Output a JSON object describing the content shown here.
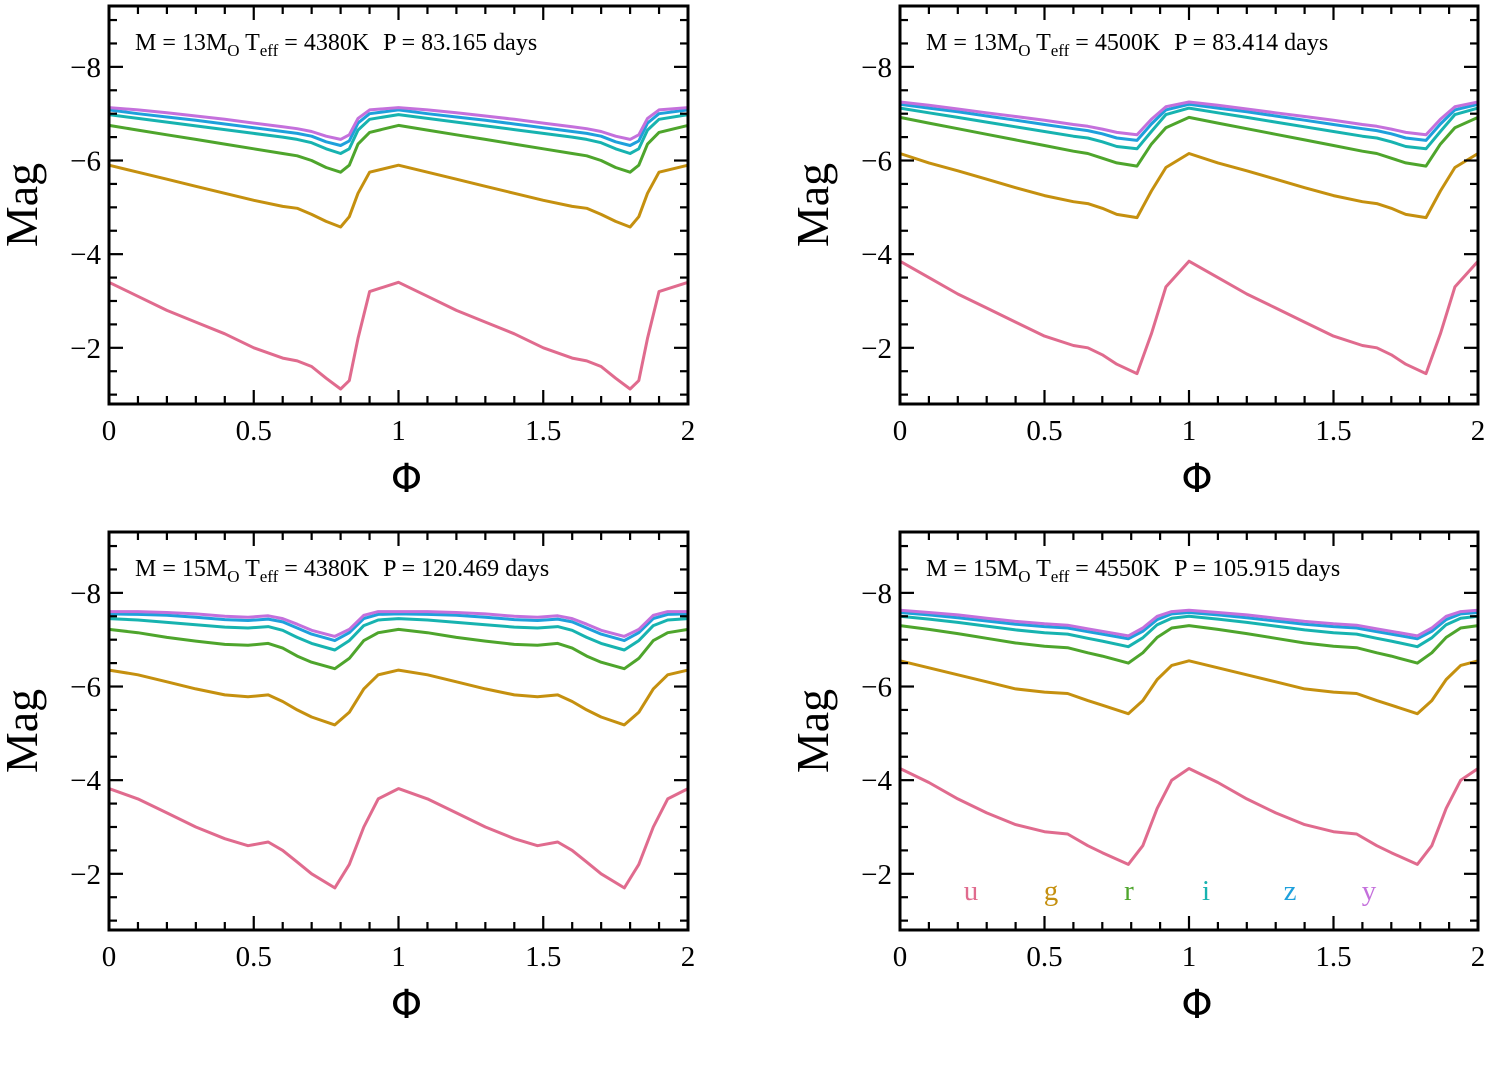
{
  "figure": {
    "legend": {
      "entries": [
        {
          "band": "u",
          "color": "#e06b8e"
        },
        {
          "band": "g",
          "color": "#c5900f"
        },
        {
          "band": "r",
          "color": "#4ea52c"
        },
        {
          "band": "i",
          "color": "#17b3b0"
        },
        {
          "band": "z",
          "color": "#1ea0dc"
        },
        {
          "band": "y",
          "color": "#c470dc"
        }
      ]
    }
  },
  "chart_data": [
    {
      "type": "line",
      "annotation": {
        "m": "M = 13M",
        "m_sub": "O",
        "t": " T",
        "t_sub": "eff",
        "t_val": " = 4380K",
        "p": "P = 83.165 days"
      },
      "xlabel": "Φ",
      "ylabel": "Mag",
      "xlim": [
        0,
        2
      ],
      "ylim": [
        0.8,
        9.3
      ],
      "y_inverted": true,
      "xticks": [
        0,
        0.5,
        1,
        1.5,
        2
      ],
      "xtick_labels": [
        "0",
        "0.5",
        "1",
        "1.5",
        "2"
      ],
      "yticks": [
        2,
        4,
        6,
        8
      ],
      "ytick_labels": [
        "−2",
        "−4",
        "−6",
        "−8"
      ],
      "x": [
        0,
        0.1,
        0.2,
        0.3,
        0.4,
        0.5,
        0.6,
        0.65,
        0.7,
        0.75,
        0.8,
        0.83,
        0.86,
        0.9,
        1.0,
        1.1,
        1.2,
        1.3,
        1.4,
        1.5,
        1.6,
        1.65,
        1.7,
        1.75,
        1.8,
        1.83,
        1.86,
        1.9,
        2.0
      ],
      "series": [
        {
          "name": "u",
          "values": [
            3.4,
            3.1,
            2.8,
            2.55,
            2.3,
            2.0,
            1.78,
            1.72,
            1.6,
            1.35,
            1.12,
            1.3,
            2.2,
            3.2,
            3.4,
            3.1,
            2.8,
            2.55,
            2.3,
            2.0,
            1.78,
            1.72,
            1.6,
            1.35,
            1.12,
            1.3,
            2.2,
            3.2,
            3.4
          ]
        },
        {
          "name": "g",
          "values": [
            5.9,
            5.75,
            5.6,
            5.45,
            5.3,
            5.15,
            5.02,
            4.98,
            4.85,
            4.7,
            4.58,
            4.8,
            5.3,
            5.75,
            5.9,
            5.75,
            5.6,
            5.45,
            5.3,
            5.15,
            5.02,
            4.98,
            4.85,
            4.7,
            4.58,
            4.8,
            5.3,
            5.75,
            5.9
          ]
        },
        {
          "name": "r",
          "values": [
            6.75,
            6.65,
            6.55,
            6.45,
            6.35,
            6.25,
            6.15,
            6.1,
            6.0,
            5.85,
            5.75,
            5.9,
            6.35,
            6.6,
            6.75,
            6.65,
            6.55,
            6.45,
            6.35,
            6.25,
            6.15,
            6.1,
            6.0,
            5.85,
            5.75,
            5.9,
            6.35,
            6.6,
            6.75
          ]
        },
        {
          "name": "i",
          "values": [
            6.98,
            6.9,
            6.82,
            6.74,
            6.66,
            6.58,
            6.5,
            6.45,
            6.38,
            6.25,
            6.15,
            6.25,
            6.65,
            6.88,
            6.98,
            6.9,
            6.82,
            6.74,
            6.66,
            6.58,
            6.5,
            6.45,
            6.38,
            6.25,
            6.15,
            6.25,
            6.65,
            6.88,
            6.98
          ]
        },
        {
          "name": "z",
          "values": [
            7.08,
            7.0,
            6.93,
            6.86,
            6.78,
            6.7,
            6.62,
            6.58,
            6.52,
            6.4,
            6.32,
            6.42,
            6.8,
            7.0,
            7.08,
            7.0,
            6.93,
            6.86,
            6.78,
            6.7,
            6.62,
            6.58,
            6.52,
            6.4,
            6.32,
            6.42,
            6.8,
            7.0,
            7.08
          ]
        },
        {
          "name": "y",
          "values": [
            7.13,
            7.08,
            7.02,
            6.95,
            6.88,
            6.8,
            6.72,
            6.68,
            6.62,
            6.52,
            6.45,
            6.55,
            6.9,
            7.08,
            7.13,
            7.08,
            7.02,
            6.95,
            6.88,
            6.8,
            6.72,
            6.68,
            6.62,
            6.52,
            6.45,
            6.55,
            6.9,
            7.08,
            7.13
          ]
        }
      ]
    },
    {
      "type": "line",
      "annotation": {
        "m": "M = 13M",
        "m_sub": "O",
        "t": " T",
        "t_sub": "eff",
        "t_val": " = 4500K",
        "p": "P = 83.414 days"
      },
      "xlabel": "Φ",
      "ylabel": "Mag",
      "xlim": [
        0,
        2
      ],
      "ylim": [
        0.8,
        9.3
      ],
      "y_inverted": true,
      "xticks": [
        0,
        0.5,
        1,
        1.5,
        2
      ],
      "xtick_labels": [
        "0",
        "0.5",
        "1",
        "1.5",
        "2"
      ],
      "yticks": [
        2,
        4,
        6,
        8
      ],
      "ytick_labels": [
        "−2",
        "−4",
        "−6",
        "−8"
      ],
      "x": [
        0,
        0.1,
        0.2,
        0.3,
        0.4,
        0.5,
        0.6,
        0.65,
        0.7,
        0.75,
        0.82,
        0.87,
        0.92,
        1.0,
        1.1,
        1.2,
        1.3,
        1.4,
        1.5,
        1.6,
        1.65,
        1.7,
        1.75,
        1.82,
        1.87,
        1.92,
        2.0
      ],
      "series": [
        {
          "name": "u",
          "values": [
            3.85,
            3.5,
            3.15,
            2.85,
            2.55,
            2.25,
            2.05,
            2.0,
            1.85,
            1.65,
            1.45,
            2.3,
            3.3,
            3.85,
            3.5,
            3.15,
            2.85,
            2.55,
            2.25,
            2.05,
            2.0,
            1.85,
            1.65,
            1.45,
            2.3,
            3.3,
            3.85
          ]
        },
        {
          "name": "g",
          "values": [
            6.15,
            5.95,
            5.78,
            5.6,
            5.42,
            5.25,
            5.12,
            5.08,
            4.98,
            4.85,
            4.78,
            5.35,
            5.85,
            6.15,
            5.95,
            5.78,
            5.6,
            5.42,
            5.25,
            5.12,
            5.08,
            4.98,
            4.85,
            4.78,
            5.35,
            5.85,
            6.15
          ]
        },
        {
          "name": "r",
          "values": [
            6.92,
            6.8,
            6.68,
            6.56,
            6.44,
            6.32,
            6.2,
            6.15,
            6.05,
            5.95,
            5.88,
            6.35,
            6.7,
            6.92,
            6.8,
            6.68,
            6.56,
            6.44,
            6.32,
            6.2,
            6.15,
            6.05,
            5.95,
            5.88,
            6.35,
            6.7,
            6.92
          ]
        },
        {
          "name": "i",
          "values": [
            7.12,
            7.02,
            6.92,
            6.82,
            6.72,
            6.62,
            6.52,
            6.48,
            6.4,
            6.3,
            6.25,
            6.62,
            6.98,
            7.12,
            7.02,
            6.92,
            6.82,
            6.72,
            6.62,
            6.52,
            6.48,
            6.4,
            6.3,
            6.25,
            6.62,
            6.98,
            7.12
          ]
        },
        {
          "name": "z",
          "values": [
            7.2,
            7.12,
            7.04,
            6.95,
            6.86,
            6.77,
            6.68,
            6.64,
            6.57,
            6.48,
            6.43,
            6.78,
            7.08,
            7.2,
            7.12,
            7.04,
            6.95,
            6.86,
            6.77,
            6.68,
            6.64,
            6.57,
            6.48,
            6.43,
            6.78,
            7.08,
            7.2
          ]
        },
        {
          "name": "y",
          "values": [
            7.25,
            7.18,
            7.1,
            7.02,
            6.94,
            6.86,
            6.77,
            6.73,
            6.67,
            6.6,
            6.55,
            6.88,
            7.15,
            7.25,
            7.18,
            7.1,
            7.02,
            6.94,
            6.86,
            6.77,
            6.73,
            6.67,
            6.6,
            6.55,
            6.88,
            7.15,
            7.25
          ]
        }
      ]
    },
    {
      "type": "line",
      "annotation": {
        "m": "M = 15M",
        "m_sub": "O",
        "t": " T",
        "t_sub": "eff",
        "t_val": " = 4380K",
        "p": "P = 120.469 days"
      },
      "xlabel": "Φ",
      "ylabel": "Mag",
      "xlim": [
        0,
        2
      ],
      "ylim": [
        0.8,
        9.3
      ],
      "y_inverted": true,
      "xticks": [
        0,
        0.5,
        1,
        1.5,
        2
      ],
      "xtick_labels": [
        "0",
        "0.5",
        "1",
        "1.5",
        "2"
      ],
      "yticks": [
        2,
        4,
        6,
        8
      ],
      "ytick_labels": [
        "−2",
        "−4",
        "−6",
        "−8"
      ],
      "x": [
        0,
        0.1,
        0.2,
        0.3,
        0.4,
        0.48,
        0.55,
        0.6,
        0.65,
        0.7,
        0.78,
        0.83,
        0.88,
        0.93,
        1.0,
        1.1,
        1.2,
        1.3,
        1.4,
        1.48,
        1.55,
        1.6,
        1.65,
        1.7,
        1.78,
        1.83,
        1.88,
        1.93,
        2.0
      ],
      "series": [
        {
          "name": "u",
          "values": [
            3.82,
            3.6,
            3.3,
            3.0,
            2.75,
            2.6,
            2.68,
            2.5,
            2.25,
            2.0,
            1.7,
            2.2,
            3.0,
            3.6,
            3.82,
            3.6,
            3.3,
            3.0,
            2.75,
            2.6,
            2.68,
            2.5,
            2.25,
            2.0,
            1.7,
            2.2,
            3.0,
            3.6,
            3.82
          ]
        },
        {
          "name": "g",
          "values": [
            6.35,
            6.25,
            6.1,
            5.95,
            5.82,
            5.78,
            5.82,
            5.68,
            5.5,
            5.35,
            5.18,
            5.45,
            5.95,
            6.25,
            6.35,
            6.25,
            6.1,
            5.95,
            5.82,
            5.78,
            5.82,
            5.68,
            5.5,
            5.35,
            5.18,
            5.45,
            5.95,
            6.25,
            6.35
          ]
        },
        {
          "name": "r",
          "values": [
            7.22,
            7.15,
            7.05,
            6.97,
            6.9,
            6.88,
            6.92,
            6.82,
            6.65,
            6.52,
            6.38,
            6.6,
            6.98,
            7.15,
            7.22,
            7.15,
            7.05,
            6.97,
            6.9,
            6.88,
            6.92,
            6.82,
            6.65,
            6.52,
            6.38,
            6.6,
            6.98,
            7.15,
            7.22
          ]
        },
        {
          "name": "i",
          "values": [
            7.45,
            7.42,
            7.37,
            7.32,
            7.27,
            7.25,
            7.28,
            7.2,
            7.05,
            6.92,
            6.78,
            6.98,
            7.3,
            7.42,
            7.45,
            7.42,
            7.37,
            7.32,
            7.27,
            7.25,
            7.28,
            7.2,
            7.05,
            6.92,
            6.78,
            6.98,
            7.3,
            7.42,
            7.45
          ]
        },
        {
          "name": "z",
          "values": [
            7.55,
            7.54,
            7.52,
            7.48,
            7.43,
            7.41,
            7.44,
            7.38,
            7.25,
            7.12,
            6.98,
            7.15,
            7.45,
            7.54,
            7.55,
            7.54,
            7.52,
            7.48,
            7.43,
            7.41,
            7.44,
            7.38,
            7.25,
            7.12,
            6.98,
            7.15,
            7.45,
            7.54,
            7.55
          ]
        },
        {
          "name": "y",
          "values": [
            7.6,
            7.6,
            7.58,
            7.55,
            7.5,
            7.48,
            7.51,
            7.45,
            7.33,
            7.2,
            7.07,
            7.22,
            7.52,
            7.6,
            7.6,
            7.6,
            7.58,
            7.55,
            7.5,
            7.48,
            7.51,
            7.45,
            7.33,
            7.2,
            7.07,
            7.22,
            7.52,
            7.6,
            7.6
          ]
        }
      ]
    },
    {
      "type": "line",
      "annotation": {
        "m": "M = 15M",
        "m_sub": "O",
        "t": " T",
        "t_sub": "eff",
        "t_val": " = 4550K",
        "p": "P = 105.915 days"
      },
      "xlabel": "Φ",
      "ylabel": "Mag",
      "xlim": [
        0,
        2
      ],
      "ylim": [
        0.8,
        9.3
      ],
      "y_inverted": true,
      "xticks": [
        0,
        0.5,
        1,
        1.5,
        2
      ],
      "xtick_labels": [
        "0",
        "0.5",
        "1",
        "1.5",
        "2"
      ],
      "yticks": [
        2,
        4,
        6,
        8
      ],
      "ytick_labels": [
        "−2",
        "−4",
        "−6",
        "−8"
      ],
      "x": [
        0,
        0.1,
        0.2,
        0.3,
        0.4,
        0.5,
        0.58,
        0.65,
        0.7,
        0.79,
        0.84,
        0.89,
        0.94,
        1.0,
        1.1,
        1.2,
        1.3,
        1.4,
        1.5,
        1.58,
        1.65,
        1.7,
        1.79,
        1.84,
        1.89,
        1.94,
        2.0
      ],
      "series": [
        {
          "name": "u",
          "values": [
            4.25,
            3.95,
            3.6,
            3.3,
            3.05,
            2.9,
            2.85,
            2.6,
            2.45,
            2.2,
            2.6,
            3.4,
            4.0,
            4.25,
            3.95,
            3.6,
            3.3,
            3.05,
            2.9,
            2.85,
            2.6,
            2.45,
            2.2,
            2.6,
            3.4,
            4.0,
            4.25
          ]
        },
        {
          "name": "g",
          "values": [
            6.55,
            6.4,
            6.25,
            6.1,
            5.95,
            5.88,
            5.85,
            5.7,
            5.6,
            5.42,
            5.7,
            6.15,
            6.45,
            6.55,
            6.4,
            6.25,
            6.1,
            5.95,
            5.88,
            5.85,
            5.7,
            5.6,
            5.42,
            5.7,
            6.15,
            6.45,
            6.55
          ]
        },
        {
          "name": "r",
          "values": [
            7.3,
            7.22,
            7.13,
            7.03,
            6.93,
            6.86,
            6.83,
            6.72,
            6.65,
            6.5,
            6.72,
            7.05,
            7.25,
            7.3,
            7.22,
            7.13,
            7.03,
            6.93,
            6.86,
            6.83,
            6.72,
            6.65,
            6.5,
            6.72,
            7.05,
            7.25,
            7.3
          ]
        },
        {
          "name": "i",
          "values": [
            7.5,
            7.44,
            7.37,
            7.29,
            7.21,
            7.15,
            7.12,
            7.03,
            6.97,
            6.85,
            7.04,
            7.32,
            7.46,
            7.5,
            7.44,
            7.37,
            7.29,
            7.21,
            7.15,
            7.12,
            7.03,
            6.97,
            6.85,
            7.04,
            7.32,
            7.46,
            7.5
          ]
        },
        {
          "name": "z",
          "values": [
            7.58,
            7.53,
            7.47,
            7.4,
            7.33,
            7.28,
            7.25,
            7.17,
            7.12,
            7.02,
            7.18,
            7.43,
            7.55,
            7.58,
            7.53,
            7.47,
            7.4,
            7.33,
            7.28,
            7.25,
            7.17,
            7.12,
            7.02,
            7.18,
            7.43,
            7.55,
            7.58
          ]
        },
        {
          "name": "y",
          "values": [
            7.63,
            7.58,
            7.53,
            7.46,
            7.39,
            7.34,
            7.31,
            7.23,
            7.18,
            7.08,
            7.25,
            7.5,
            7.6,
            7.63,
            7.58,
            7.53,
            7.46,
            7.39,
            7.34,
            7.31,
            7.23,
            7.18,
            7.08,
            7.25,
            7.5,
            7.6,
            7.63
          ]
        }
      ]
    }
  ]
}
